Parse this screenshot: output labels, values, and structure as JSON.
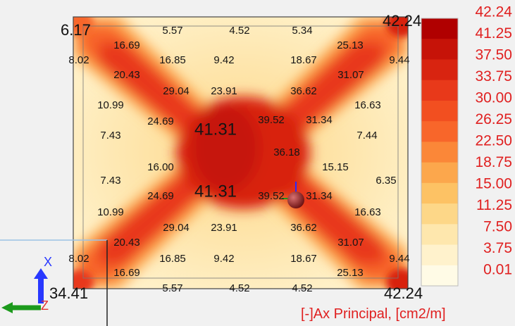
{
  "chart_data": {
    "type": "heatmap",
    "title": "",
    "legend": {
      "title": "[-]Ax Principal, [cm2/m]",
      "placement": "right",
      "values": [
        "42.24",
        "41.25",
        "37.50",
        "33.75",
        "30.00",
        "26.25",
        "22.50",
        "18.75",
        "15.00",
        "11.25",
        "7.50",
        "3.75",
        "0.01"
      ],
      "colors": [
        "#b00000",
        "#c61308",
        "#d82410",
        "#e8391a",
        "#f24f20",
        "#f8662a",
        "#fb8738",
        "#fca74c",
        "#fdc264",
        "#fdd788",
        "#fee7ad",
        "#fff2cc",
        "#fffbe6"
      ]
    },
    "corner_values": {
      "top_left": "6.17",
      "top_right": "42.24",
      "bottom_left": "34.41",
      "bottom_right": "42.24"
    },
    "labels": [
      "5.57",
      "4.52",
      "5.34",
      "16.69",
      "25.13",
      "8.02",
      "9.44",
      "16.85",
      "9.42",
      "18.67",
      "20.43",
      "31.07",
      "29.04",
      "23.91",
      "36.62",
      "10.99",
      "16.63",
      "24.69",
      "41.31",
      "39.52",
      "31.34",
      "7.43",
      "7.44",
      "36.18",
      "16.00",
      "15.15",
      "7.43",
      "6.35",
      "24.69",
      "41.31",
      "39.52",
      "31.34",
      "10.99",
      "16.63",
      "29.04",
      "23.91",
      "36.62",
      "20.43",
      "31.07",
      "8.02",
      "9.44",
      "16.85",
      "9.42",
      "18.67",
      "16.69",
      "25.13",
      "5.57",
      "4.52",
      "4.52"
    ],
    "axes_icon": {
      "x_label": "X",
      "z_label": "Z"
    }
  }
}
